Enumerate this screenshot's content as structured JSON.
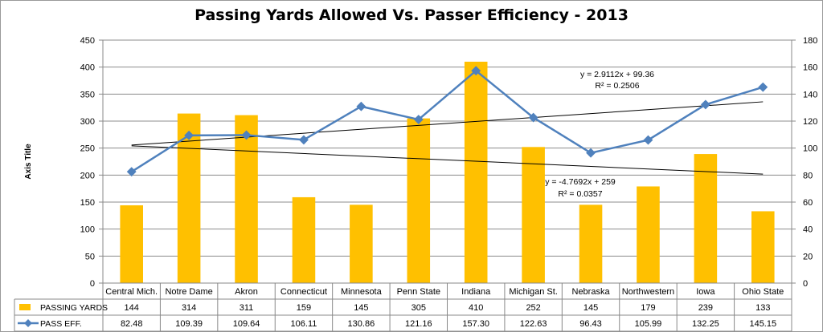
{
  "chart_data": {
    "type": "bar+line",
    "title": "Passing Yards Allowed Vs. Passer Efficiency - 2013",
    "ylabel": "Axis Title",
    "categories": [
      "Central Mich.",
      "Notre Dame",
      "Akron",
      "Connecticut",
      "Minnesota",
      "Penn State",
      "Indiana",
      "Michigan St.",
      "Nebraska",
      "Northwestern",
      "Iowa",
      "Ohio State"
    ],
    "series": [
      {
        "name": "PASSING YARDS",
        "kind": "bar",
        "axis": "left",
        "color": "#FFC000",
        "values": [
          144,
          314,
          311,
          159,
          145,
          305,
          410,
          252,
          145,
          179,
          239,
          133
        ],
        "labels": [
          "144",
          "314",
          "311",
          "159",
          "145",
          "305",
          "410",
          "252",
          "145",
          "179",
          "239",
          "133"
        ]
      },
      {
        "name": "PASS EFF.",
        "kind": "line",
        "axis": "right",
        "color": "#4F81BD",
        "values": [
          82.48,
          109.39,
          109.64,
          106.11,
          130.86,
          121.16,
          157.3,
          122.63,
          96.43,
          105.99,
          132.25,
          145.15
        ],
        "labels": [
          "82.48",
          "109.39",
          "109.64",
          "106.11",
          "130.86",
          "121.16",
          "157.30",
          "122.63",
          "96.43",
          "105.99",
          "132.25",
          "145.15"
        ]
      }
    ],
    "y_left": {
      "ylim": [
        0,
        450
      ],
      "ticks": [
        "0",
        "50",
        "100",
        "150",
        "200",
        "250",
        "300",
        "350",
        "400",
        "450"
      ]
    },
    "y_right": {
      "ylim": [
        0,
        180
      ],
      "ticks": [
        "0",
        "20",
        "40",
        "60",
        "80",
        "100",
        "120",
        "140",
        "160",
        "180"
      ]
    },
    "trendlines": [
      {
        "axis": "right",
        "slope": 2.9112,
        "intercept": 99.36,
        "equation": "y = 2.9112x + 99.36",
        "r2": "R² = 0.2506"
      },
      {
        "axis": "left",
        "slope": -4.7692,
        "intercept": 259,
        "equation": "y = -4.7692x + 259",
        "r2": "R² = 0.0357"
      }
    ],
    "grid": true,
    "legend": "data table below chart"
  }
}
